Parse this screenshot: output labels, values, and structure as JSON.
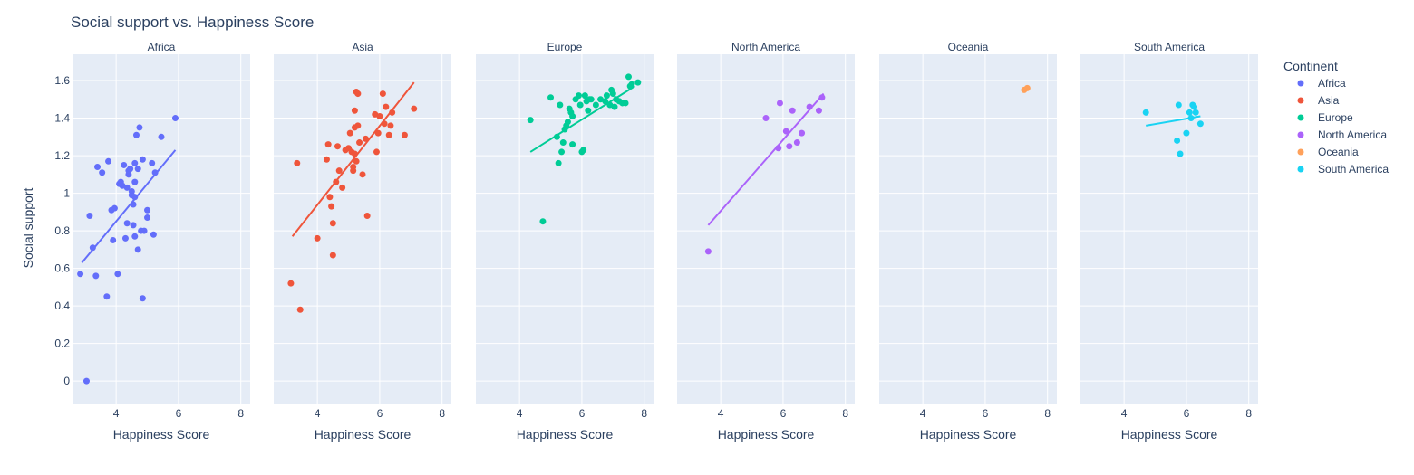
{
  "chart_data": {
    "type": "scatter",
    "title": "Social support vs. Happiness Score",
    "xlabel": "Happiness Score",
    "ylabel": "Social support",
    "xlim": [
      2.6,
      8.3
    ],
    "ylim": [
      -0.12,
      1.74
    ],
    "xticks": [
      4,
      6,
      8
    ],
    "yticks": [
      0,
      0.2,
      0.4,
      0.6,
      0.8,
      1,
      1.2,
      1.4,
      1.6
    ],
    "grid": true,
    "legend": {
      "title": "Continent",
      "placement": "right"
    },
    "facets": [
      {
        "name": "Africa",
        "color": "#636efa",
        "trendline": [
          [
            2.9,
            0.63
          ],
          [
            5.9,
            1.23
          ]
        ],
        "points": [
          [
            2.85,
            0.57
          ],
          [
            3.05,
            0.0
          ],
          [
            3.15,
            0.88
          ],
          [
            3.25,
            0.71
          ],
          [
            3.35,
            0.56
          ],
          [
            3.4,
            1.14
          ],
          [
            3.55,
            1.11
          ],
          [
            3.7,
            0.45
          ],
          [
            3.75,
            1.17
          ],
          [
            3.85,
            0.91
          ],
          [
            3.9,
            0.75
          ],
          [
            3.95,
            0.92
          ],
          [
            4.05,
            0.57
          ],
          [
            4.1,
            1.05
          ],
          [
            4.15,
            1.06
          ],
          [
            4.2,
            1.04
          ],
          [
            4.25,
            1.15
          ],
          [
            4.3,
            0.76
          ],
          [
            4.35,
            0.84
          ],
          [
            4.35,
            1.03
          ],
          [
            4.4,
            1.12
          ],
          [
            4.4,
            1.1
          ],
          [
            4.45,
            1.13
          ],
          [
            4.5,
            1.01
          ],
          [
            4.5,
            0.99
          ],
          [
            4.55,
            0.94
          ],
          [
            4.55,
            0.83
          ],
          [
            4.6,
            0.98
          ],
          [
            4.6,
            1.06
          ],
          [
            4.6,
            0.77
          ],
          [
            4.6,
            1.16
          ],
          [
            4.65,
            1.31
          ],
          [
            4.7,
            1.13
          ],
          [
            4.7,
            0.7
          ],
          [
            4.75,
            1.35
          ],
          [
            4.8,
            0.8
          ],
          [
            4.85,
            0.44
          ],
          [
            4.85,
            1.18
          ],
          [
            4.9,
            0.8
          ],
          [
            5.0,
            0.87
          ],
          [
            5.0,
            0.91
          ],
          [
            5.15,
            1.16
          ],
          [
            5.2,
            0.78
          ],
          [
            5.25,
            1.11
          ],
          [
            5.45,
            1.3
          ],
          [
            5.9,
            1.4
          ]
        ]
      },
      {
        "name": "Asia",
        "color": "#EF553B",
        "trendline": [
          [
            3.2,
            0.77
          ],
          [
            7.1,
            1.59
          ]
        ],
        "points": [
          [
            3.15,
            0.52
          ],
          [
            3.35,
            1.16
          ],
          [
            3.45,
            0.38
          ],
          [
            4.0,
            0.76
          ],
          [
            4.3,
            1.18
          ],
          [
            4.35,
            1.26
          ],
          [
            4.4,
            0.98
          ],
          [
            4.45,
            0.93
          ],
          [
            4.5,
            0.67
          ],
          [
            4.5,
            0.84
          ],
          [
            4.6,
            1.06
          ],
          [
            4.65,
            1.25
          ],
          [
            4.7,
            1.12
          ],
          [
            4.8,
            1.03
          ],
          [
            4.9,
            1.23
          ],
          [
            5.0,
            1.24
          ],
          [
            5.05,
            1.32
          ],
          [
            5.1,
            1.22
          ],
          [
            5.15,
            1.12
          ],
          [
            5.15,
            1.14
          ],
          [
            5.2,
            1.21
          ],
          [
            5.2,
            1.35
          ],
          [
            5.2,
            1.44
          ],
          [
            5.25,
            1.54
          ],
          [
            5.25,
            1.17
          ],
          [
            5.3,
            1.53
          ],
          [
            5.3,
            1.36
          ],
          [
            5.35,
            1.27
          ],
          [
            5.45,
            1.1
          ],
          [
            5.55,
            1.29
          ],
          [
            5.6,
            0.88
          ],
          [
            5.85,
            1.42
          ],
          [
            5.9,
            1.22
          ],
          [
            5.95,
            1.32
          ],
          [
            6.0,
            1.41
          ],
          [
            6.1,
            1.53
          ],
          [
            6.15,
            1.37
          ],
          [
            6.2,
            1.46
          ],
          [
            6.3,
            1.31
          ],
          [
            6.35,
            1.36
          ],
          [
            6.4,
            1.43
          ],
          [
            6.8,
            1.31
          ],
          [
            7.1,
            1.45
          ]
        ]
      },
      {
        "name": "Europe",
        "color": "#00cc96",
        "trendline": [
          [
            4.35,
            1.22
          ],
          [
            7.7,
            1.57
          ]
        ],
        "points": [
          [
            4.35,
            1.39
          ],
          [
            4.75,
            0.85
          ],
          [
            5.0,
            1.51
          ],
          [
            5.2,
            1.3
          ],
          [
            5.25,
            1.16
          ],
          [
            5.3,
            1.47
          ],
          [
            5.35,
            1.22
          ],
          [
            5.4,
            1.27
          ],
          [
            5.45,
            1.34
          ],
          [
            5.5,
            1.36
          ],
          [
            5.55,
            1.38
          ],
          [
            5.6,
            1.45
          ],
          [
            5.65,
            1.43
          ],
          [
            5.7,
            1.41
          ],
          [
            5.7,
            1.26
          ],
          [
            5.8,
            1.5
          ],
          [
            5.9,
            1.52
          ],
          [
            5.95,
            1.47
          ],
          [
            6.0,
            1.22
          ],
          [
            6.05,
            1.23
          ],
          [
            6.1,
            1.52
          ],
          [
            6.15,
            1.49
          ],
          [
            6.2,
            1.44
          ],
          [
            6.25,
            1.5
          ],
          [
            6.3,
            1.5
          ],
          [
            6.45,
            1.47
          ],
          [
            6.6,
            1.5
          ],
          [
            6.75,
            1.49
          ],
          [
            6.8,
            1.52
          ],
          [
            6.9,
            1.47
          ],
          [
            6.95,
            1.55
          ],
          [
            7.0,
            1.53
          ],
          [
            7.05,
            1.46
          ],
          [
            7.1,
            1.5
          ],
          [
            7.2,
            1.49
          ],
          [
            7.3,
            1.48
          ],
          [
            7.4,
            1.48
          ],
          [
            7.5,
            1.62
          ],
          [
            7.55,
            1.57
          ],
          [
            7.6,
            1.58
          ],
          [
            7.8,
            1.59
          ]
        ]
      },
      {
        "name": "North America",
        "color": "#ab63fa",
        "trendline": [
          [
            3.6,
            0.83
          ],
          [
            7.3,
            1.53
          ]
        ],
        "points": [
          [
            3.6,
            0.69
          ],
          [
            5.45,
            1.4
          ],
          [
            5.85,
            1.24
          ],
          [
            5.9,
            1.48
          ],
          [
            6.1,
            1.33
          ],
          [
            6.2,
            1.25
          ],
          [
            6.3,
            1.44
          ],
          [
            6.45,
            1.27
          ],
          [
            6.6,
            1.32
          ],
          [
            6.85,
            1.46
          ],
          [
            7.15,
            1.44
          ],
          [
            7.25,
            1.51
          ]
        ]
      },
      {
        "name": "Oceania",
        "color": "#FFA15A",
        "trendline": [
          [
            7.25,
            1.55
          ],
          [
            7.35,
            1.56
          ]
        ],
        "points": [
          [
            7.25,
            1.55
          ],
          [
            7.35,
            1.56
          ]
        ]
      },
      {
        "name": "South America",
        "color": "#19d3f3",
        "trendline": [
          [
            4.7,
            1.36
          ],
          [
            6.45,
            1.41
          ]
        ],
        "points": [
          [
            4.7,
            1.43
          ],
          [
            5.7,
            1.28
          ],
          [
            5.75,
            1.47
          ],
          [
            5.8,
            1.21
          ],
          [
            6.0,
            1.32
          ],
          [
            6.1,
            1.43
          ],
          [
            6.15,
            1.4
          ],
          [
            6.2,
            1.47
          ],
          [
            6.25,
            1.46
          ],
          [
            6.3,
            1.43
          ],
          [
            6.45,
            1.37
          ]
        ]
      }
    ]
  }
}
